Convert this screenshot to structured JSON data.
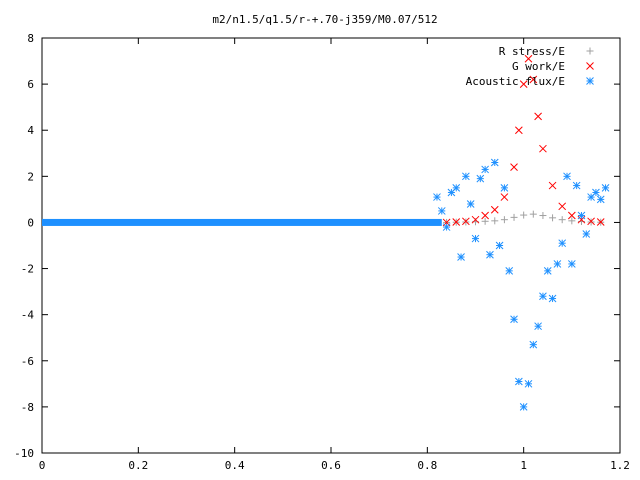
{
  "chart_data": {
    "type": "scatter",
    "title": "m2/n1.5/q1.5/r-+.70-j359/M0.07/512",
    "xlabel": "",
    "ylabel": "",
    "xlim": [
      0,
      1.2
    ],
    "ylim": [
      -10,
      8
    ],
    "x_ticks": [
      "0",
      "0.2",
      "0.4",
      "0.6",
      "0.8",
      "1",
      "1.2"
    ],
    "y_ticks": [
      "8",
      "6",
      "4",
      "2",
      "0",
      "-2",
      "-4",
      "-6",
      "-8",
      "-10"
    ],
    "grid": false,
    "legend_position": "top-right",
    "series": [
      {
        "name": "R stress/E",
        "marker": "plus",
        "color": "#a0a0a0",
        "points": [
          [
            0.84,
            0.0
          ],
          [
            0.86,
            0.01
          ],
          [
            0.88,
            0.02
          ],
          [
            0.9,
            0.03
          ],
          [
            0.92,
            0.05
          ],
          [
            0.94,
            0.07
          ],
          [
            0.96,
            0.12
          ],
          [
            0.98,
            0.22
          ],
          [
            1.0,
            0.32
          ],
          [
            1.02,
            0.36
          ],
          [
            1.04,
            0.3
          ],
          [
            1.06,
            0.2
          ],
          [
            1.08,
            0.12
          ],
          [
            1.1,
            0.07
          ],
          [
            1.12,
            0.04
          ],
          [
            1.14,
            0.02
          ],
          [
            1.16,
            0.01
          ]
        ]
      },
      {
        "name": "G work/E",
        "marker": "cross",
        "color": "#ff0000",
        "points": [
          [
            0.84,
            0.0
          ],
          [
            0.86,
            0.02
          ],
          [
            0.88,
            0.05
          ],
          [
            0.9,
            0.12
          ],
          [
            0.92,
            0.3
          ],
          [
            0.94,
            0.55
          ],
          [
            0.96,
            1.1
          ],
          [
            0.98,
            2.4
          ],
          [
            0.99,
            4.0
          ],
          [
            1.0,
            6.0
          ],
          [
            1.01,
            7.1
          ],
          [
            1.02,
            6.2
          ],
          [
            1.03,
            4.6
          ],
          [
            1.04,
            3.2
          ],
          [
            1.06,
            1.6
          ],
          [
            1.08,
            0.7
          ],
          [
            1.1,
            0.3
          ],
          [
            1.12,
            0.12
          ],
          [
            1.14,
            0.05
          ],
          [
            1.16,
            0.02
          ]
        ]
      },
      {
        "name": "Acoustic flux/E",
        "marker": "star",
        "color": "#1e90ff",
        "points": [
          [
            0.82,
            1.1
          ],
          [
            0.83,
            0.5
          ],
          [
            0.84,
            -0.2
          ],
          [
            0.85,
            1.3
          ],
          [
            0.86,
            1.5
          ],
          [
            0.87,
            -1.5
          ],
          [
            0.88,
            2.0
          ],
          [
            0.89,
            0.8
          ],
          [
            0.9,
            -0.7
          ],
          [
            0.91,
            1.9
          ],
          [
            0.92,
            2.3
          ],
          [
            0.93,
            -1.4
          ],
          [
            0.94,
            2.6
          ],
          [
            0.95,
            -1.0
          ],
          [
            0.96,
            1.5
          ],
          [
            0.97,
            -2.1
          ],
          [
            0.98,
            -4.2
          ],
          [
            0.99,
            -6.9
          ],
          [
            1.0,
            -8.0
          ],
          [
            1.01,
            -7.0
          ],
          [
            1.02,
            -5.3
          ],
          [
            1.03,
            -4.5
          ],
          [
            1.04,
            -3.2
          ],
          [
            1.05,
            -2.1
          ],
          [
            1.06,
            -3.3
          ],
          [
            1.07,
            -1.8
          ],
          [
            1.08,
            -0.9
          ],
          [
            1.09,
            2.0
          ],
          [
            1.1,
            -1.8
          ],
          [
            1.11,
            1.6
          ],
          [
            1.12,
            0.3
          ],
          [
            1.13,
            -0.5
          ],
          [
            1.14,
            1.1
          ],
          [
            1.15,
            1.3
          ],
          [
            1.16,
            1.0
          ],
          [
            1.17,
            1.5
          ]
        ]
      }
    ]
  }
}
